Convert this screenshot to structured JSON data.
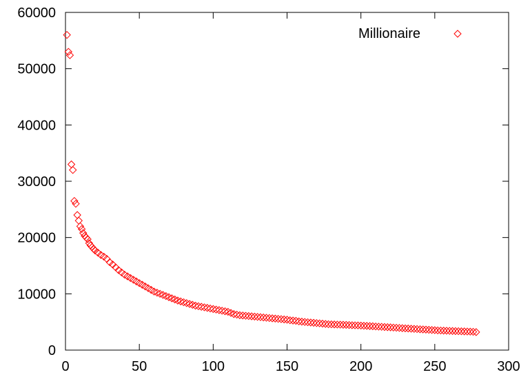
{
  "chart_data": {
    "type": "scatter",
    "title": "",
    "xlabel": "",
    "ylabel": "",
    "xlim": [
      0,
      300
    ],
    "ylim": [
      0,
      60000
    ],
    "x_ticks": [
      0,
      50,
      100,
      150,
      200,
      250,
      300
    ],
    "y_ticks": [
      0,
      10000,
      20000,
      30000,
      40000,
      50000,
      60000
    ],
    "x_tick_labels": [
      "0",
      "50",
      "100",
      "150",
      "200",
      "250",
      "300"
    ],
    "y_tick_labels": [
      "0",
      "10000",
      "20000",
      "30000",
      "40000",
      "50000",
      "60000"
    ],
    "grid": false,
    "legend_position": "top-right",
    "series": [
      {
        "name": "Millionaire",
        "color": "#ff0000",
        "marker": "diamond",
        "points": [
          [
            1,
            56000
          ],
          [
            2,
            53000
          ],
          [
            3,
            52400
          ],
          [
            4,
            33000
          ],
          [
            5,
            32000
          ],
          [
            6,
            26500
          ],
          [
            7,
            26000
          ],
          [
            8,
            24000
          ],
          [
            9,
            23000
          ],
          [
            10,
            22000
          ],
          [
            11,
            21500
          ],
          [
            12,
            20800
          ],
          [
            13,
            20300
          ],
          [
            14,
            20000
          ],
          [
            15,
            19700
          ],
          [
            16,
            19000
          ],
          [
            17,
            18600
          ],
          [
            18,
            18300
          ],
          [
            19,
            18000
          ],
          [
            20,
            17700
          ],
          [
            22,
            17300
          ],
          [
            24,
            16900
          ],
          [
            26,
            16600
          ],
          [
            28,
            16200
          ],
          [
            30,
            15600
          ],
          [
            32,
            15200
          ],
          [
            34,
            14700
          ],
          [
            36,
            14200
          ],
          [
            38,
            13800
          ],
          [
            40,
            13400
          ],
          [
            42,
            13100
          ],
          [
            44,
            12800
          ],
          [
            46,
            12500
          ],
          [
            48,
            12200
          ],
          [
            50,
            11900
          ],
          [
            52,
            11600
          ],
          [
            54,
            11300
          ],
          [
            56,
            11000
          ],
          [
            58,
            10700
          ],
          [
            60,
            10400
          ],
          [
            62,
            10200
          ],
          [
            64,
            10000
          ],
          [
            66,
            9800
          ],
          [
            68,
            9600
          ],
          [
            70,
            9400
          ],
          [
            72,
            9200
          ],
          [
            74,
            9000
          ],
          [
            76,
            8800
          ],
          [
            78,
            8650
          ],
          [
            80,
            8500
          ],
          [
            82,
            8350
          ],
          [
            84,
            8200
          ],
          [
            86,
            8050
          ],
          [
            88,
            7900
          ],
          [
            90,
            7800
          ],
          [
            92,
            7700
          ],
          [
            94,
            7600
          ],
          [
            96,
            7500
          ],
          [
            98,
            7400
          ],
          [
            100,
            7300
          ],
          [
            102,
            7200
          ],
          [
            104,
            7100
          ],
          [
            106,
            7000
          ],
          [
            108,
            6900
          ],
          [
            110,
            6800
          ],
          [
            112,
            6600
          ],
          [
            114,
            6400
          ],
          [
            116,
            6300
          ],
          [
            118,
            6200
          ],
          [
            120,
            6150
          ],
          [
            122,
            6100
          ],
          [
            124,
            6050
          ],
          [
            126,
            6000
          ],
          [
            128,
            5950
          ],
          [
            130,
            5900
          ],
          [
            132,
            5850
          ],
          [
            134,
            5800
          ],
          [
            136,
            5750
          ],
          [
            138,
            5700
          ],
          [
            140,
            5650
          ],
          [
            142,
            5600
          ],
          [
            144,
            5550
          ],
          [
            146,
            5500
          ],
          [
            148,
            5450
          ],
          [
            150,
            5400
          ],
          [
            152,
            5300
          ],
          [
            154,
            5250
          ],
          [
            156,
            5200
          ],
          [
            158,
            5100
          ],
          [
            160,
            5050
          ],
          [
            162,
            5000
          ],
          [
            164,
            4950
          ],
          [
            166,
            4900
          ],
          [
            168,
            4850
          ],
          [
            170,
            4800
          ],
          [
            172,
            4750
          ],
          [
            174,
            4700
          ],
          [
            176,
            4650
          ],
          [
            178,
            4600
          ],
          [
            180,
            4580
          ],
          [
            182,
            4560
          ],
          [
            184,
            4540
          ],
          [
            186,
            4520
          ],
          [
            188,
            4500
          ],
          [
            190,
            4480
          ],
          [
            192,
            4450
          ],
          [
            194,
            4420
          ],
          [
            196,
            4400
          ],
          [
            198,
            4380
          ],
          [
            200,
            4350
          ],
          [
            202,
            4320
          ],
          [
            204,
            4300
          ],
          [
            206,
            4270
          ],
          [
            208,
            4240
          ],
          [
            210,
            4200
          ],
          [
            212,
            4170
          ],
          [
            214,
            4140
          ],
          [
            216,
            4100
          ],
          [
            218,
            4070
          ],
          [
            220,
            4040
          ],
          [
            222,
            4000
          ],
          [
            224,
            3970
          ],
          [
            226,
            3940
          ],
          [
            228,
            3900
          ],
          [
            230,
            3870
          ],
          [
            232,
            3840
          ],
          [
            234,
            3800
          ],
          [
            236,
            3770
          ],
          [
            238,
            3740
          ],
          [
            240,
            3700
          ],
          [
            242,
            3670
          ],
          [
            244,
            3640
          ],
          [
            246,
            3600
          ],
          [
            248,
            3570
          ],
          [
            250,
            3540
          ],
          [
            252,
            3500
          ],
          [
            254,
            3480
          ],
          [
            256,
            3460
          ],
          [
            258,
            3440
          ],
          [
            260,
            3420
          ],
          [
            262,
            3400
          ],
          [
            264,
            3380
          ],
          [
            266,
            3360
          ],
          [
            268,
            3340
          ],
          [
            270,
            3320
          ],
          [
            272,
            3300
          ],
          [
            274,
            3280
          ],
          [
            276,
            3250
          ],
          [
            278,
            3200
          ]
        ]
      }
    ]
  }
}
